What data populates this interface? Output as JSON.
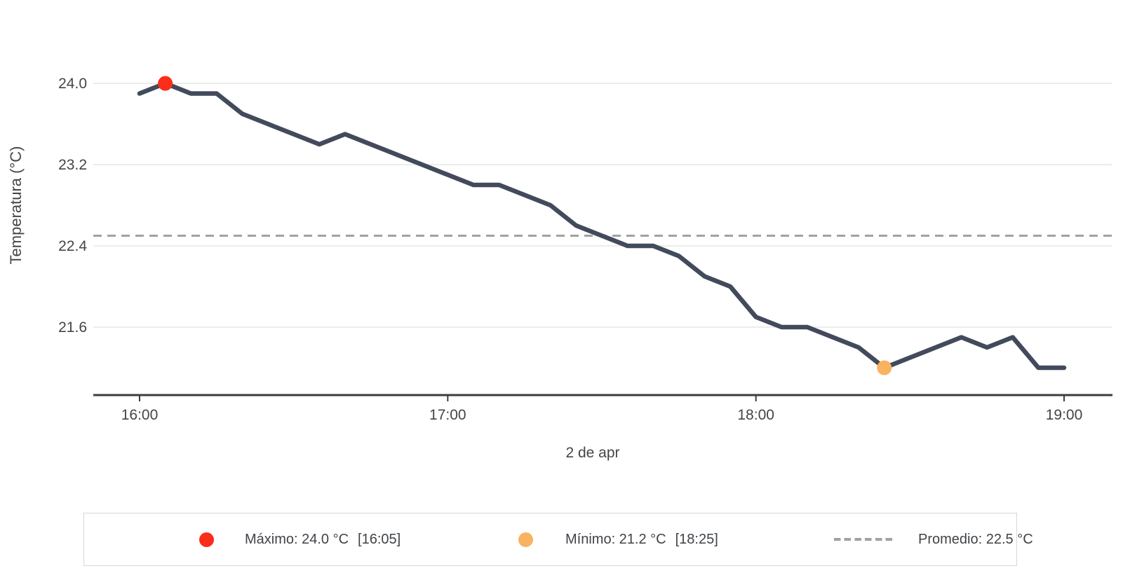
{
  "chart_data": {
    "type": "line",
    "title": "",
    "xlabel": "2 de apr",
    "ylabel": "Temperatura (°C)",
    "x_ticks": [
      "16:00",
      "17:00",
      "18:00",
      "19:00"
    ],
    "y_ticks": [
      24.0,
      23.2,
      22.4,
      21.6
    ],
    "y_tick_labels": [
      "24.0",
      "23.2",
      "22.4",
      "21.6"
    ],
    "ylim": [
      21.0,
      24.4
    ],
    "grid": true,
    "legend_position": "bottom",
    "x": [
      "16:00",
      "16:05",
      "16:10",
      "16:15",
      "16:20",
      "16:25",
      "16:30",
      "16:35",
      "16:40",
      "16:45",
      "16:50",
      "16:55",
      "17:00",
      "17:05",
      "17:10",
      "17:15",
      "17:20",
      "17:25",
      "17:30",
      "17:35",
      "17:40",
      "17:45",
      "17:50",
      "17:55",
      "18:00",
      "18:05",
      "18:10",
      "18:15",
      "18:20",
      "18:25",
      "18:30",
      "18:35",
      "18:40",
      "18:45",
      "18:50",
      "18:55",
      "19:00"
    ],
    "y": [
      23.9,
      24.0,
      23.9,
      23.9,
      23.7,
      23.6,
      23.5,
      23.4,
      23.5,
      23.4,
      23.3,
      23.2,
      23.1,
      23.0,
      23.0,
      22.9,
      22.8,
      22.6,
      22.5,
      22.4,
      22.4,
      22.3,
      22.1,
      22.0,
      21.7,
      21.6,
      21.6,
      21.5,
      21.4,
      21.2,
      21.3,
      21.4,
      21.5,
      21.4,
      21.5,
      21.2,
      21.2
    ],
    "line_color": "#424a5c",
    "grid_color": "#ededed",
    "axis_color": "#3c3c3c",
    "text_color": "#454549",
    "average_line": {
      "value": 22.5,
      "color": "#a1a1a1"
    },
    "markers": {
      "max": {
        "x": "16:05",
        "y": 24.0,
        "color": "#fb2d1b"
      },
      "min": {
        "x": "18:25",
        "y": 21.2,
        "color": "#f9b260"
      }
    }
  },
  "legend": {
    "items": [
      {
        "swatch": "dot",
        "color": "#fb2d1b",
        "label": "Máximo: 24.0 °C",
        "time": "[16:05]"
      },
      {
        "swatch": "dot",
        "color": "#f9b260",
        "label": "Mínimo: 21.2 °C",
        "time": "[18:25]"
      },
      {
        "swatch": "dash",
        "color": "#a1a1a1",
        "label": "Promedio: 22.5 °C",
        "time": ""
      }
    ]
  }
}
